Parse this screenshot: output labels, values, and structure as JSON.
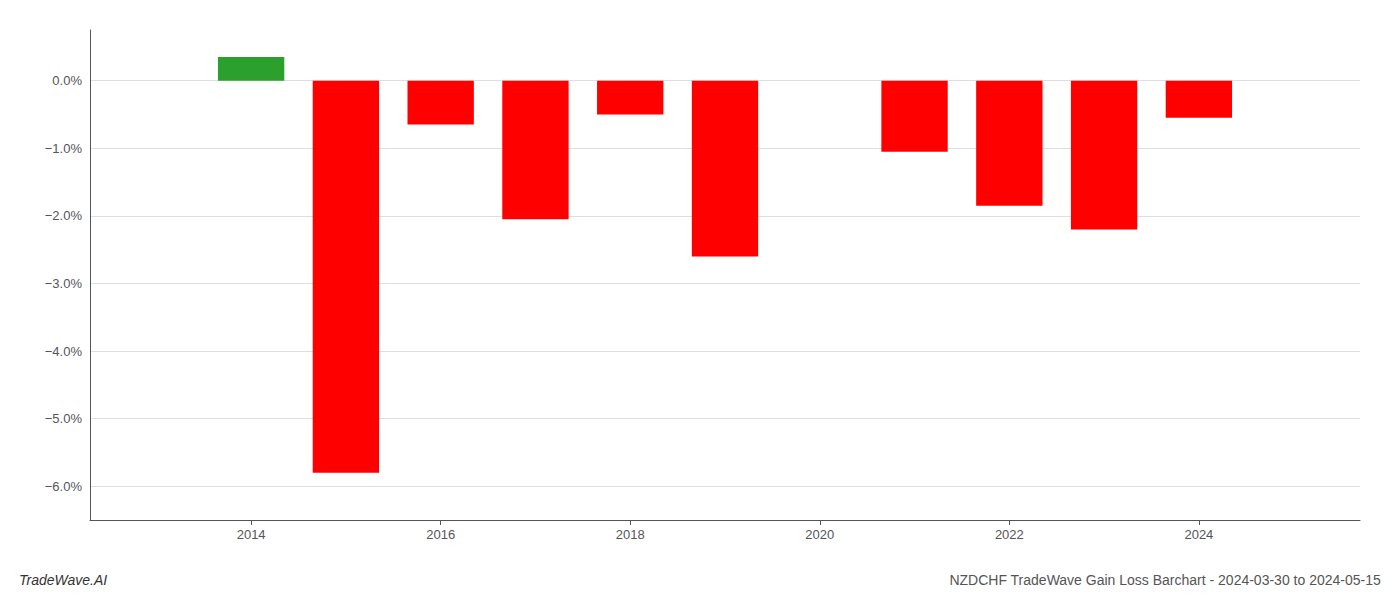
{
  "chart_data": {
    "type": "bar",
    "title": "NZDCHF TradeWave Gain Loss Barchart - 2024-03-30 to 2024-05-15",
    "annotations": [
      "TradeWave.AI"
    ],
    "x": [
      2014,
      2015,
      2016,
      2017,
      2018,
      2019,
      2021,
      2022,
      2023,
      2024
    ],
    "values": [
      0.35,
      -5.8,
      -0.65,
      -2.05,
      -0.5,
      -2.6,
      -1.05,
      -1.85,
      -2.2,
      -0.55
    ],
    "colors": [
      "#2ca02c",
      "#ff0000",
      "#ff0000",
      "#ff0000",
      "#ff0000",
      "#ff0000",
      "#ff0000",
      "#ff0000",
      "#ff0000",
      "#ff0000"
    ],
    "xlim": [
      2012.3,
      2025.7
    ],
    "xticks": [
      2014,
      2016,
      2018,
      2020,
      2022,
      2024
    ],
    "ylim": [
      -6.5,
      0.75
    ],
    "yticks": [
      {
        "value": 0.0,
        "label": "0.0%"
      },
      {
        "value": -1.0,
        "label": "−1.0%"
      },
      {
        "value": -2.0,
        "label": "−2.0%"
      },
      {
        "value": -3.0,
        "label": "−3.0%"
      },
      {
        "value": -4.0,
        "label": "−4.0%"
      },
      {
        "value": -5.0,
        "label": "−5.0%"
      },
      {
        "value": -6.0,
        "label": "−6.0%"
      }
    ],
    "grid": true
  }
}
